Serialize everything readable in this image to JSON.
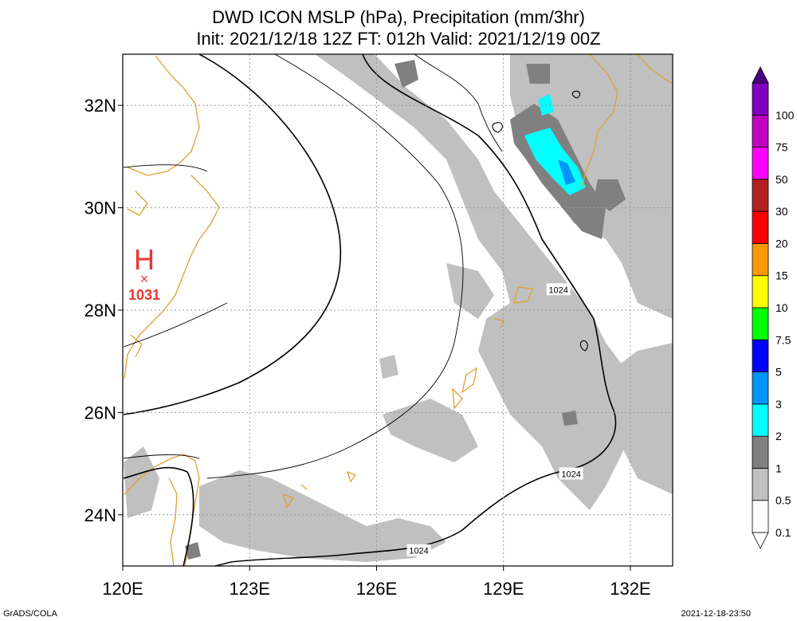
{
  "title": {
    "line1": "DWD ICON MSLP (hPa), Precipitation (mm/3hr)",
    "line2": "Init: 2021/12/18 12Z  FT: 012h  Valid: 2021/12/19 00Z"
  },
  "map": {
    "lon_range": [
      120,
      133
    ],
    "lat_range": [
      23,
      33
    ],
    "lon_ticks": [
      {
        "value": 120,
        "label": "120E"
      },
      {
        "value": 123,
        "label": "123E"
      },
      {
        "value": 126,
        "label": "126E"
      },
      {
        "value": 129,
        "label": "129E"
      },
      {
        "value": 132,
        "label": "132E"
      }
    ],
    "lat_ticks": [
      {
        "value": 24,
        "label": "24N"
      },
      {
        "value": 26,
        "label": "26N"
      },
      {
        "value": 28,
        "label": "28N"
      },
      {
        "value": 30,
        "label": "30N"
      },
      {
        "value": 32,
        "label": "32N"
      }
    ],
    "grid": true,
    "high_center": {
      "letter": "H",
      "value": "1031",
      "lon": 120.5,
      "lat": 28.6,
      "color": "#ee3333"
    },
    "isobar_labels": [
      {
        "text": "1024",
        "lon": 130.3,
        "lat": 28.4
      },
      {
        "text": "1024",
        "lon": 130.6,
        "lat": 24.8
      },
      {
        "text": "1024",
        "lon": 127.0,
        "lat": 23.3
      }
    ],
    "coast_color": "#e0a030"
  },
  "colorbar": {
    "levels": [
      {
        "label": "0.1",
        "color": "#ffffff"
      },
      {
        "label": "0.5",
        "color": "#c0c0c0"
      },
      {
        "label": "1",
        "color": "#808080"
      },
      {
        "label": "2",
        "color": "#00ffff"
      },
      {
        "label": "3",
        "color": "#0094ff"
      },
      {
        "label": "5",
        "color": "#0000ff"
      },
      {
        "label": "7.5",
        "color": "#00ff00"
      },
      {
        "label": "10",
        "color": "#ffff00"
      },
      {
        "label": "15",
        "color": "#ff9900"
      },
      {
        "label": "20",
        "color": "#ff0000"
      },
      {
        "label": "30",
        "color": "#b22222"
      },
      {
        "label": "50",
        "color": "#ff00ff"
      },
      {
        "label": "75",
        "color": "#c000c0"
      },
      {
        "label": "100",
        "color": "#8000c0"
      }
    ],
    "top_color": "#4b0082"
  },
  "footer": {
    "left": "GrADS/COLA",
    "right": "2021-12-18-23:50"
  }
}
